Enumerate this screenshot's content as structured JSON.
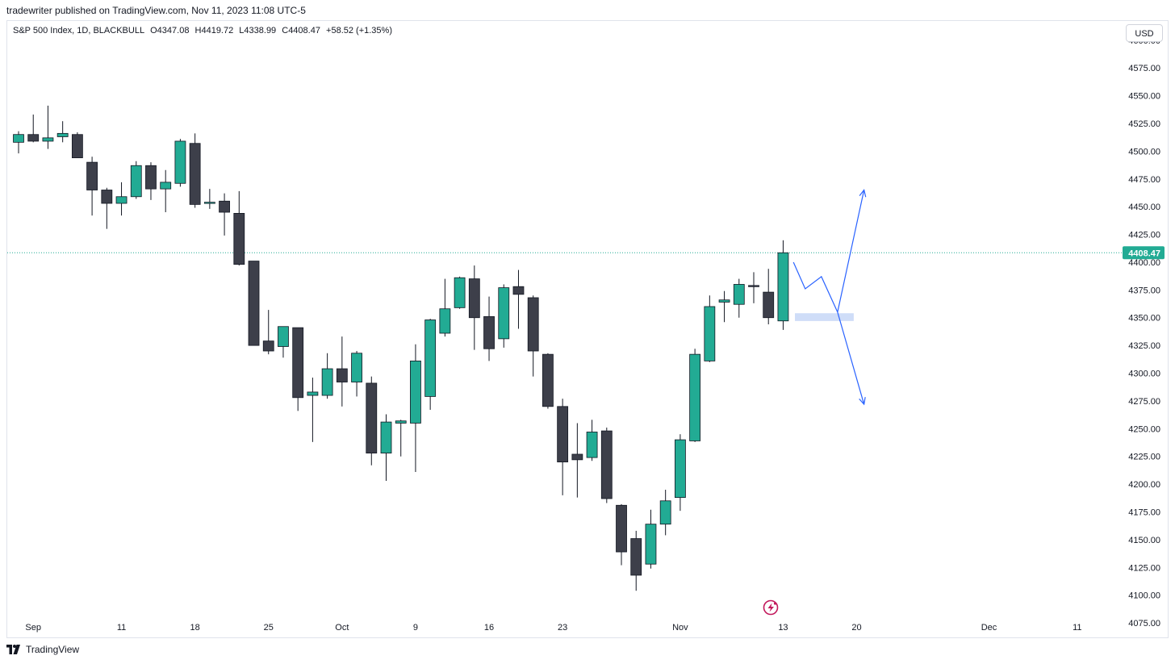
{
  "publisher": "tradewriter published on TradingView.com, Nov 11, 2023 11:08 UTC-5",
  "legend": {
    "symbol": "S&P 500 Index, 1D, BLACKBULL",
    "open": "O4347.08",
    "high": "H4419.72",
    "low": "L4338.99",
    "close": "C4408.47",
    "change": "+58.52 (+1.35%)"
  },
  "currency_button": "USD",
  "footer_brand": "TradingView",
  "colors": {
    "up": "#22ab94",
    "down": "#3d3f4a",
    "last_price_line": "#22ab94",
    "annotation": "#2962ff",
    "zone": "#c7d7f7"
  },
  "chart_data": {
    "type": "candlestick",
    "ylim": [
      4062,
      4618
    ],
    "price_ticks": [
      "4600.00",
      "4575.00",
      "4550.00",
      "4525.00",
      "4500.00",
      "4475.00",
      "4450.00",
      "4425.00",
      "4400.00",
      "4375.00",
      "4350.00",
      "4325.00",
      "4300.00",
      "4275.00",
      "4250.00",
      "4225.00",
      "4200.00",
      "4175.00",
      "4150.00",
      "4125.00",
      "4100.00",
      "4075.00"
    ],
    "price_tick_values": [
      4600,
      4575,
      4550,
      4525,
      4500,
      4475,
      4450,
      4425,
      4400,
      4375,
      4350,
      4325,
      4300,
      4275,
      4250,
      4225,
      4200,
      4175,
      4150,
      4125,
      4100,
      4075
    ],
    "last_price": 4408.47,
    "last_price_label": "4408.47",
    "date_axis": [
      {
        "label": "Sep",
        "index": 1
      },
      {
        "label": "11",
        "index": 7
      },
      {
        "label": "18",
        "index": 12
      },
      {
        "label": "25",
        "index": 17
      },
      {
        "label": "Oct",
        "index": 22
      },
      {
        "label": "9",
        "index": 27
      },
      {
        "label": "16",
        "index": 32
      },
      {
        "label": "23",
        "index": 37
      },
      {
        "label": "Nov",
        "index": 45
      },
      {
        "label": "13",
        "index": 52
      },
      {
        "label": "20",
        "index": 57
      },
      {
        "label": "Dec",
        "index": 66
      },
      {
        "label": "11",
        "index": 72
      }
    ],
    "candles": [
      {
        "i": 0,
        "o": 4508,
        "h": 4518,
        "l": 4498,
        "c": 4515
      },
      {
        "i": 1,
        "o": 4515,
        "h": 4533,
        "l": 4508,
        "c": 4509
      },
      {
        "i": 2,
        "o": 4509,
        "h": 4541,
        "l": 4502,
        "c": 4512
      },
      {
        "i": 3,
        "o": 4513,
        "h": 4527,
        "l": 4508,
        "c": 4516
      },
      {
        "i": 4,
        "o": 4515,
        "h": 4517,
        "l": 4494,
        "c": 4494
      },
      {
        "i": 5,
        "o": 4490,
        "h": 4495,
        "l": 4442,
        "c": 4465
      },
      {
        "i": 6,
        "o": 4465,
        "h": 4467,
        "l": 4430,
        "c": 4453
      },
      {
        "i": 7,
        "o": 4453,
        "h": 4472,
        "l": 4442,
        "c": 4459
      },
      {
        "i": 8,
        "o": 4459,
        "h": 4491,
        "l": 4457,
        "c": 4487
      },
      {
        "i": 9,
        "o": 4487,
        "h": 4490,
        "l": 4456,
        "c": 4466
      },
      {
        "i": 10,
        "o": 4466,
        "h": 4483,
        "l": 4445,
        "c": 4472
      },
      {
        "i": 11,
        "o": 4471,
        "h": 4511,
        "l": 4468,
        "c": 4509
      },
      {
        "i": 12,
        "o": 4507,
        "h": 4516,
        "l": 4449,
        "c": 4452
      },
      {
        "i": 13,
        "o": 4454,
        "h": 4466,
        "l": 4448,
        "c": 4454
      },
      {
        "i": 14,
        "o": 4455,
        "h": 4462,
        "l": 4424,
        "c": 4445
      },
      {
        "i": 15,
        "o": 4444,
        "h": 4464,
        "l": 4397,
        "c": 4398
      },
      {
        "i": 16,
        "o": 4401,
        "h": 4401,
        "l": 4325,
        "c": 4325
      },
      {
        "i": 17,
        "o": 4329,
        "h": 4357,
        "l": 4317,
        "c": 4320
      },
      {
        "i": 18,
        "o": 4324,
        "h": 4342,
        "l": 4314,
        "c": 4342
      },
      {
        "i": 19,
        "o": 4341,
        "h": 4341,
        "l": 4266,
        "c": 4278
      },
      {
        "i": 20,
        "o": 4280,
        "h": 4296,
        "l": 4238,
        "c": 4283
      },
      {
        "i": 21,
        "o": 4280,
        "h": 4318,
        "l": 4277,
        "c": 4304
      },
      {
        "i": 22,
        "o": 4304,
        "h": 4333,
        "l": 4270,
        "c": 4292
      },
      {
        "i": 23,
        "o": 4292,
        "h": 4320,
        "l": 4279,
        "c": 4318
      },
      {
        "i": 24,
        "o": 4291,
        "h": 4297,
        "l": 4217,
        "c": 4228
      },
      {
        "i": 25,
        "o": 4228,
        "h": 4263,
        "l": 4203,
        "c": 4256
      },
      {
        "i": 26,
        "o": 4255,
        "h": 4258,
        "l": 4225,
        "c": 4257
      },
      {
        "i": 27,
        "o": 4255,
        "h": 4326,
        "l": 4211,
        "c": 4311
      },
      {
        "i": 28,
        "o": 4279,
        "h": 4349,
        "l": 4267,
        "c": 4348
      },
      {
        "i": 29,
        "o": 4336,
        "h": 4385,
        "l": 4333,
        "c": 4358
      },
      {
        "i": 30,
        "o": 4359,
        "h": 4387,
        "l": 4358,
        "c": 4386
      },
      {
        "i": 31,
        "o": 4385,
        "h": 4397,
        "l": 4321,
        "c": 4350
      },
      {
        "i": 32,
        "o": 4351,
        "h": 4369,
        "l": 4311,
        "c": 4322
      },
      {
        "i": 33,
        "o": 4331,
        "h": 4380,
        "l": 4323,
        "c": 4377
      },
      {
        "i": 34,
        "o": 4378,
        "h": 4393,
        "l": 4340,
        "c": 4371
      },
      {
        "i": 35,
        "o": 4368,
        "h": 4370,
        "l": 4297,
        "c": 4320
      },
      {
        "i": 36,
        "o": 4317,
        "h": 4318,
        "l": 4268,
        "c": 4270
      },
      {
        "i": 37,
        "o": 4270,
        "h": 4277,
        "l": 4190,
        "c": 4220
      },
      {
        "i": 38,
        "o": 4227,
        "h": 4255,
        "l": 4188,
        "c": 4222
      },
      {
        "i": 39,
        "o": 4224,
        "h": 4258,
        "l": 4221,
        "c": 4247
      },
      {
        "i": 40,
        "o": 4248,
        "h": 4251,
        "l": 4183,
        "c": 4187
      },
      {
        "i": 41,
        "o": 4181,
        "h": 4182,
        "l": 4127,
        "c": 4139
      },
      {
        "i": 42,
        "o": 4151,
        "h": 4158,
        "l": 4104,
        "c": 4118
      },
      {
        "i": 43,
        "o": 4128,
        "h": 4177,
        "l": 4124,
        "c": 4164
      },
      {
        "i": 44,
        "o": 4164,
        "h": 4195,
        "l": 4154,
        "c": 4185
      },
      {
        "i": 45,
        "o": 4188,
        "h": 4245,
        "l": 4176,
        "c": 4240
      },
      {
        "i": 46,
        "o": 4239,
        "h": 4322,
        "l": 4238,
        "c": 4317
      },
      {
        "i": 47,
        "o": 4311,
        "h": 4370,
        "l": 4310,
        "c": 4360
      },
      {
        "i": 48,
        "o": 4364,
        "h": 4374,
        "l": 4346,
        "c": 4366
      },
      {
        "i": 49,
        "o": 4362,
        "h": 4385,
        "l": 4350,
        "c": 4380
      },
      {
        "i": 50,
        "o": 4379,
        "h": 4391,
        "l": 4363,
        "c": 4378
      },
      {
        "i": 51,
        "o": 4373,
        "h": 4394,
        "l": 4344,
        "c": 4350
      },
      {
        "i": 52,
        "o": 4347.08,
        "h": 4419.72,
        "l": 4338.99,
        "c": 4408.47
      }
    ]
  },
  "annotations": {
    "zone": {
      "i_start": 52.8,
      "i_end": 56.8,
      "price_high": 4354,
      "price_low": 4347
    },
    "path_main": [
      [
        52.7,
        4400
      ],
      [
        53.5,
        4376
      ],
      [
        54.6,
        4387
      ],
      [
        55.7,
        4355
      ]
    ],
    "path_up": [
      [
        55.7,
        4355
      ],
      [
        57.5,
        4465
      ]
    ],
    "path_down": [
      [
        55.7,
        4355
      ],
      [
        57.5,
        4272
      ]
    ]
  }
}
